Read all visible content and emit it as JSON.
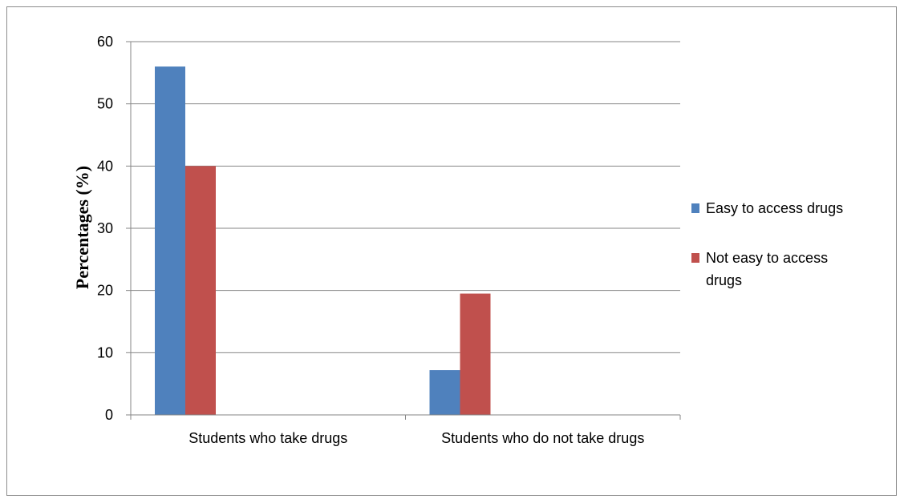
{
  "chart_data": {
    "type": "bar",
    "categories": [
      "Students who take drugs",
      "Students who do not take drugs"
    ],
    "series": [
      {
        "name": "Easy to access drugs",
        "color": "#4f81bd",
        "values": [
          56,
          7.2
        ]
      },
      {
        "name": "Not easy to access drugs",
        "color": "#c0504d",
        "values": [
          40,
          19.5
        ]
      }
    ],
    "ylabel": "Percentages (%)",
    "ylim": [
      0,
      60
    ],
    "yticks": [
      "0",
      "10",
      "20",
      "30",
      "40",
      "50",
      "60"
    ],
    "grid": true,
    "legend_position": "right",
    "legend_lines": [
      [
        "Easy to access drugs"
      ],
      [
        "Not easy to access",
        "drugs"
      ]
    ]
  }
}
